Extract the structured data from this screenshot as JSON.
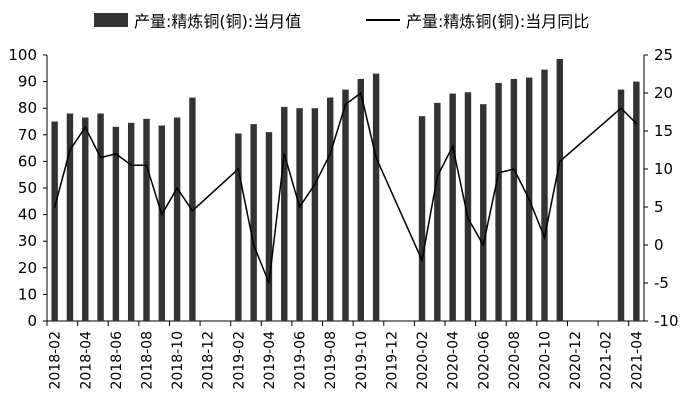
{
  "chart_data": {
    "type": "bar",
    "legend_position": "top",
    "grid": false,
    "x": [
      "2018-02",
      "2018-03",
      "2018-04",
      "2018-05",
      "2018-06",
      "2018-07",
      "2018-08",
      "2018-09",
      "2018-10",
      "2018-11",
      "2018-12",
      "2019-01",
      "2019-02",
      "2019-03",
      "2019-04",
      "2019-05",
      "2019-06",
      "2019-07",
      "2019-08",
      "2019-09",
      "2019-10",
      "2019-11",
      "2019-12",
      "2020-01",
      "2020-02",
      "2020-03",
      "2020-04",
      "2020-05",
      "2020-06",
      "2020-07",
      "2020-08",
      "2020-09",
      "2020-10",
      "2020-11",
      "2020-12",
      "2021-01",
      "2021-02",
      "2021-03",
      "2021-04"
    ],
    "x_tick_labels": [
      "2018-02",
      "2018-04",
      "2018-06",
      "2018-08",
      "2018-10",
      "2018-12",
      "2019-02",
      "2019-04",
      "2019-06",
      "2019-08",
      "2019-10",
      "2019-12",
      "2020-02",
      "2020-04",
      "2020-06",
      "2020-08",
      "2020-10",
      "2020-12",
      "2021-02",
      "2021-04"
    ],
    "y_left": {
      "lim": [
        0,
        100
      ],
      "ticks": [
        "0",
        "10",
        "20",
        "30",
        "40",
        "50",
        "60",
        "70",
        "80",
        "90",
        "100"
      ]
    },
    "y_right": {
      "lim": [
        -10,
        25
      ],
      "ticks": [
        "-10",
        "-5",
        "0",
        "5",
        "10",
        "15",
        "20",
        "25"
      ]
    },
    "series": [
      {
        "name": "产量:精炼铜(铜):当月值",
        "kind": "bar",
        "axis": "left",
        "color": "#333333",
        "values": [
          75,
          78,
          76.5,
          78,
          73,
          74.5,
          76,
          73.5,
          76.5,
          84,
          null,
          null,
          70.5,
          74,
          71,
          80.5,
          80,
          80,
          84,
          87,
          91,
          93,
          null,
          null,
          77,
          82,
          85.5,
          86,
          81.5,
          89.5,
          91,
          91.5,
          94.5,
          98.5,
          null,
          null,
          null,
          87,
          90
        ]
      },
      {
        "name": "产量:精炼铜(铜):当月同比",
        "kind": "line",
        "axis": "right",
        "color": "#000000",
        "values": [
          5,
          12.5,
          15.5,
          11.5,
          12,
          10.5,
          10.5,
          4,
          7.5,
          4.5,
          null,
          null,
          10,
          0,
          -5,
          12,
          5,
          8,
          12,
          18.5,
          20,
          11.5,
          null,
          null,
          -2,
          9,
          13,
          3.5,
          0,
          9.5,
          10,
          6,
          1,
          11,
          null,
          null,
          null,
          18,
          16
        ]
      }
    ]
  }
}
